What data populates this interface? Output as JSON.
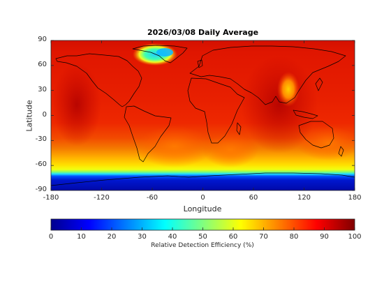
{
  "chart_data": {
    "type": "heatmap",
    "title": "2026/03/08 Daily Average",
    "xlabel": "Longitude",
    "ylabel": "Latitude",
    "xlim": [
      -180,
      180
    ],
    "ylim": [
      -90,
      90
    ],
    "xticks": [
      "-180",
      "-120",
      "-60",
      "0",
      "60",
      "120",
      "180"
    ],
    "yticks": [
      "90",
      "60",
      "30",
      "0",
      "-30",
      "-60",
      "-90"
    ],
    "colorbar": {
      "label": "Relative Detection Efficiency (%)",
      "range": [
        0,
        100
      ],
      "ticks": [
        "0",
        "10",
        "20",
        "30",
        "40",
        "50",
        "60",
        "70",
        "80",
        "90",
        "100"
      ],
      "colormap": "jet"
    },
    "approx_values": {
      "tropics_and_midlatitudes": 88,
      "southern_ocean_band_lat_-60_to_-70": 65,
      "antarctica_below_lat_-72": 8,
      "greenland_interior": 35,
      "east_asia_lat_30": 68
    }
  }
}
